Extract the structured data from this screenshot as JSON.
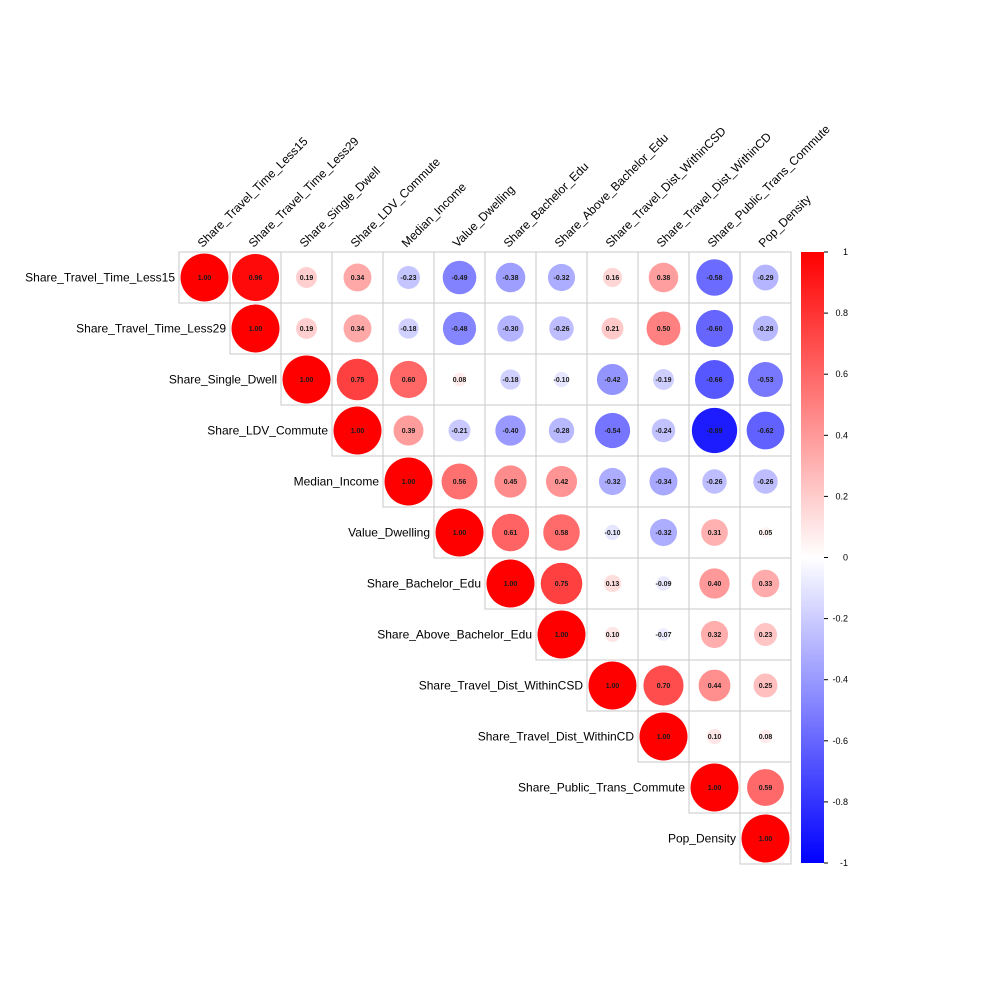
{
  "chart_data": {
    "type": "heatmap",
    "style": "upper-triangular correlation matrix with circles; circle area proportional to |r|, color blue-white-red",
    "variables": [
      "Share_Travel_Time_Less15",
      "Share_Travel_Time_Less29",
      "Share_Single_Dwell",
      "Share_LDV_Commute",
      "Median_Income",
      "Value_Dwelling",
      "Share_Bachelor_Edu",
      "Share_Above_Bachelor_Edu",
      "Share_Travel_Dist_WithinCSD",
      "Share_Travel_Dist_WithinCD",
      "Share_Public_Trans_Commute",
      "Pop_Density"
    ],
    "values": [
      [
        1.0,
        0.96,
        0.19,
        0.34,
        -0.23,
        -0.49,
        -0.38,
        -0.32,
        0.16,
        0.38,
        -0.58,
        -0.29
      ],
      [
        null,
        1.0,
        0.19,
        0.34,
        -0.18,
        -0.48,
        -0.3,
        -0.26,
        0.21,
        0.5,
        -0.6,
        -0.28
      ],
      [
        null,
        null,
        1.0,
        0.75,
        0.6,
        0.08,
        -0.18,
        -0.1,
        -0.42,
        -0.19,
        -0.66,
        -0.53
      ],
      [
        null,
        null,
        null,
        1.0,
        0.39,
        -0.21,
        -0.4,
        -0.28,
        -0.54,
        -0.24,
        -0.89,
        -0.62
      ],
      [
        null,
        null,
        null,
        null,
        1.0,
        0.56,
        0.45,
        0.42,
        -0.32,
        -0.34,
        -0.26,
        -0.26
      ],
      [
        null,
        null,
        null,
        null,
        null,
        1.0,
        0.61,
        0.58,
        -0.1,
        -0.32,
        0.31,
        0.05
      ],
      [
        null,
        null,
        null,
        null,
        null,
        null,
        1.0,
        0.75,
        0.13,
        -0.09,
        0.4,
        0.33
      ],
      [
        null,
        null,
        null,
        null,
        null,
        null,
        null,
        1.0,
        0.1,
        -0.07,
        0.32,
        0.23
      ],
      [
        null,
        null,
        null,
        null,
        null,
        null,
        null,
        null,
        1.0,
        0.7,
        0.44,
        0.25
      ],
      [
        null,
        null,
        null,
        null,
        null,
        null,
        null,
        null,
        null,
        1.0,
        0.1,
        0.08
      ],
      [
        null,
        null,
        null,
        null,
        null,
        null,
        null,
        null,
        null,
        null,
        1.0,
        0.59
      ],
      [
        null,
        null,
        null,
        null,
        null,
        null,
        null,
        null,
        null,
        null,
        null,
        1.0
      ]
    ],
    "colorbar": {
      "range": [
        -1,
        1
      ],
      "ticks": [
        "1",
        "0.8",
        "0.6",
        "0.4",
        "0.2",
        "0",
        "-0.2",
        "-0.4",
        "-0.6",
        "-0.8",
        "-1"
      ],
      "colors": {
        "negative": "#0000ff",
        "zero": "#ffffff",
        "positive": "#ff0000"
      }
    },
    "title": "",
    "xlabel": "",
    "ylabel": ""
  }
}
